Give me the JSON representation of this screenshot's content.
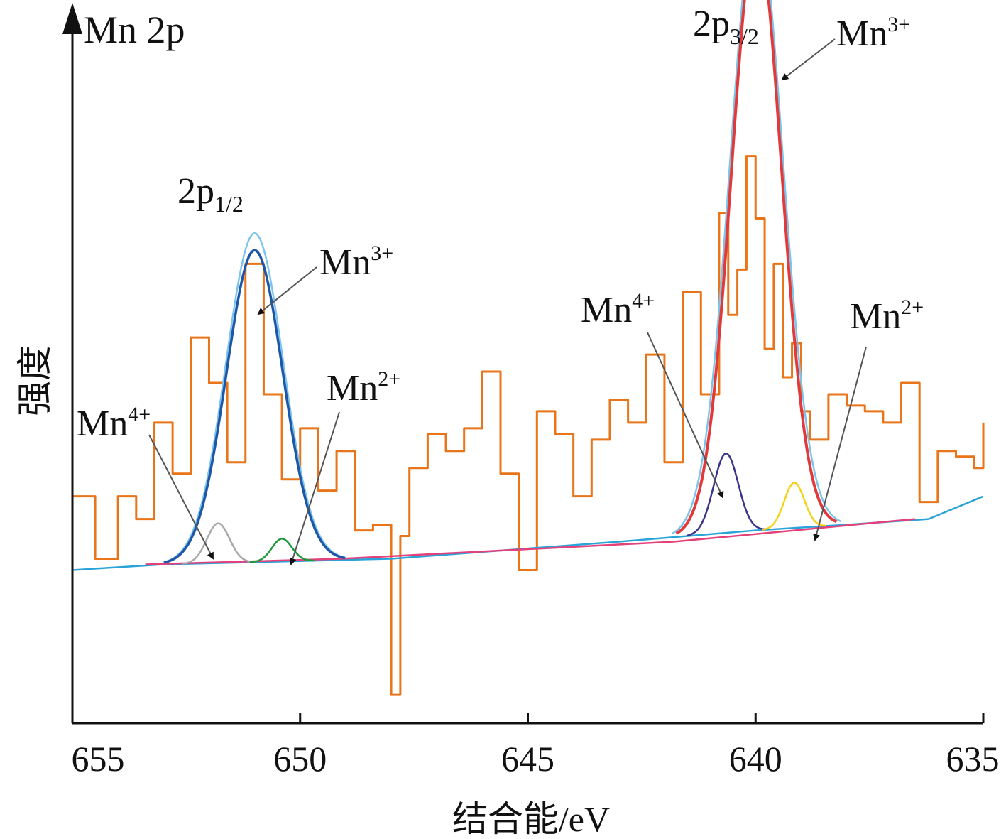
{
  "chart_data": {
    "type": "line",
    "title": "Mn 2p",
    "xlabel": "结合能/eV",
    "ylabel": "强度",
    "xlim": [
      655,
      635
    ],
    "x_reversed": true,
    "xticks": [
      "655",
      "650",
      "645",
      "640",
      "635"
    ],
    "grid": false,
    "peak_groups": [
      {
        "label_main": "2p",
        "label_sub": "1/2"
      },
      {
        "label_main": "2p",
        "label_sub": "3/2"
      }
    ],
    "annotations": [
      {
        "text": "Mn",
        "sup": "4+",
        "group": "2p1/2",
        "points_to_eV": 651.9
      },
      {
        "text": "Mn",
        "sup": "3+",
        "group": "2p1/2",
        "points_to_eV": 651.0
      },
      {
        "text": "Mn",
        "sup": "2+",
        "group": "2p1/2",
        "points_to_eV": 650.1
      },
      {
        "text": "Mn",
        "sup": "4+",
        "group": "2p3/2",
        "points_to_eV": 640.8
      },
      {
        "text": "Mn",
        "sup": "3+",
        "group": "2p3/2",
        "points_to_eV": 639.5
      },
      {
        "text": "Mn",
        "sup": "2+",
        "group": "2p3/2",
        "points_to_eV": 638.3
      }
    ],
    "series": [
      {
        "role": "raw",
        "color": "#e8751a",
        "x": [
          655.0,
          654.5,
          654.0,
          653.6,
          653.2,
          652.8,
          652.4,
          652.0,
          651.6,
          651.2,
          650.8,
          650.4,
          650.0,
          649.6,
          649.2,
          648.8,
          648.4,
          648.0,
          647.8,
          647.6,
          647.2,
          646.8,
          646.4,
          646.0,
          645.6,
          645.2,
          644.8,
          644.4,
          644.0,
          643.6,
          643.2,
          642.8,
          642.4,
          642.0,
          641.6,
          641.2,
          640.8,
          640.6,
          640.4,
          640.2,
          640.0,
          639.8,
          639.6,
          639.4,
          639.2,
          639.0,
          638.8,
          638.4,
          638.0,
          637.6,
          637.2,
          636.8,
          636.4,
          636.0,
          635.6,
          635.2,
          635.0
        ],
        "y": [
          0.3,
          0.19,
          0.3,
          0.26,
          0.43,
          0.34,
          0.58,
          0.5,
          0.36,
          0.71,
          0.48,
          0.33,
          0.42,
          0.31,
          0.38,
          0.24,
          0.25,
          -0.05,
          0.23,
          0.35,
          0.41,
          0.38,
          0.42,
          0.52,
          0.34,
          0.17,
          0.45,
          0.41,
          0.3,
          0.4,
          0.47,
          0.43,
          0.55,
          0.36,
          0.66,
          0.48,
          0.8,
          0.62,
          0.7,
          0.9,
          0.79,
          0.56,
          0.71,
          0.51,
          0.57,
          0.45,
          0.4,
          0.48,
          0.46,
          0.45,
          0.43,
          0.5,
          0.29,
          0.38,
          0.37,
          0.35,
          0.43
        ]
      },
      {
        "role": "background",
        "color": "#2aa3d8",
        "x": [
          655,
          653,
          648,
          643,
          640,
          638,
          636.2,
          635
        ],
        "y": [
          0.17,
          0.18,
          0.19,
          0.22,
          0.24,
          0.25,
          0.26,
          0.3
        ]
      },
      {
        "role": "fitted-envelope-2p1/2",
        "color": "#7dc4ec",
        "center": 651.0,
        "height": 0.58,
        "sigma": 0.63
      },
      {
        "role": "fitted-envelope-2p3/2",
        "color": "#7dc4ec",
        "center": 639.98,
        "height": 1.08,
        "sigma": 0.58
      },
      {
        "role": "Mn3+ 2p1/2",
        "color": "#1e57a8",
        "center": 651.0,
        "height": 0.55,
        "sigma": 0.62
      },
      {
        "role": "Mn4+ 2p1/2",
        "color": "#a9a9a9",
        "center": 651.8,
        "height": 0.07,
        "sigma": 0.25
      },
      {
        "role": "Mn2+ 2p1/2",
        "color": "#1e9a3a",
        "center": 650.4,
        "height": 0.04,
        "sigma": 0.22
      },
      {
        "role": "Mn3+ 2p3/2",
        "color": "#e23a3a",
        "center": 639.98,
        "height": 1.05,
        "sigma": 0.55
      },
      {
        "role": "Mn4+ 2p3/2",
        "color": "#3b3589",
        "center": 640.65,
        "height": 0.14,
        "sigma": 0.27
      },
      {
        "role": "Mn2+ 2p3/2",
        "color": "#f2d21a",
        "center": 639.15,
        "height": 0.08,
        "sigma": 0.22
      },
      {
        "role": "baseline",
        "color": "#e4407a",
        "x": [
          653.4,
          649.1,
          641.8,
          636.5
        ],
        "y": [
          0.18,
          0.19,
          0.22,
          0.26
        ]
      }
    ]
  }
}
